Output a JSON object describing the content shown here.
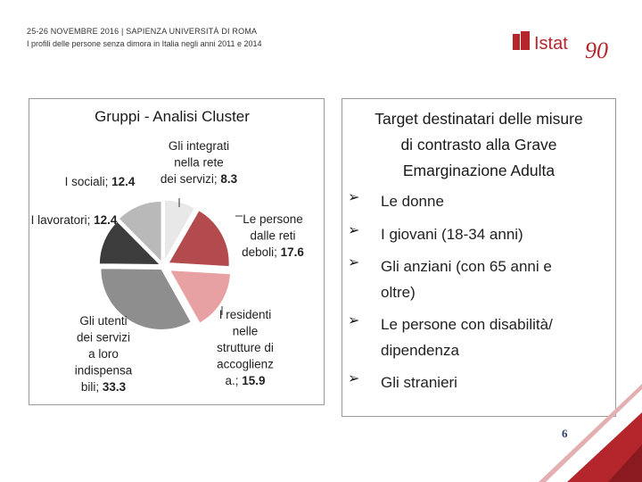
{
  "header": {
    "line1": "25-26 NOVEMBRE 2016 | SAPIENZA UNIVERSITÀ DI ROMA",
    "line2": "I profili delle persone senza dimora in Italia negli anni 2011 e 2014"
  },
  "logo": {
    "text": "Istat",
    "number": "90"
  },
  "chart_data": {
    "type": "pie",
    "title": "Gruppi - Analisi Cluster",
    "slices": [
      {
        "label_lines": [
          "Gli integrati",
          "nella rete",
          "dei servizi;"
        ],
        "value": 8.3,
        "value_text": "8.3",
        "color": "#e8e8e8"
      },
      {
        "label_lines": [
          "Le persone",
          "dalle reti",
          "deboli;"
        ],
        "value": 17.6,
        "value_text": "17.6",
        "color": "#b34a4e"
      },
      {
        "label_lines": [
          "I residenti",
          "nelle",
          "strutture di",
          "accoglienz",
          "a.;"
        ],
        "value": 15.9,
        "value_text": "15.9",
        "color": "#e8a1a3"
      },
      {
        "label_lines": [
          "Gli utenti",
          "dei servizi",
          "a loro",
          "indispensa",
          "bili;"
        ],
        "value": 33.3,
        "value_text": "33.3",
        "color": "#8e8e8e"
      },
      {
        "label_lines": [
          "I lavoratori;"
        ],
        "value": 12.4,
        "value_text": "12.4",
        "color": "#3c3c3c"
      },
      {
        "label_lines": [
          "I sociali;"
        ],
        "value": 12.4,
        "value_text": "12.4",
        "color": "#b9b9b9"
      }
    ]
  },
  "target": {
    "title_lines": [
      "Target destinatari delle misure",
      "di contrasto alla Grave",
      "Emarginazione Adulta"
    ],
    "bullet_symbol": "➢",
    "items": [
      {
        "lines": [
          "Le donne"
        ]
      },
      {
        "lines": [
          "I giovani (18-34 anni)"
        ]
      },
      {
        "lines": [
          "Gli anziani (con 65 anni e",
          "oltre)"
        ]
      },
      {
        "lines": [
          "Le persone con disabilità/",
          "dipendenza"
        ]
      },
      {
        "lines": [
          "Gli stranieri"
        ]
      }
    ]
  },
  "page_number": "6",
  "colors": {
    "brand_red": "#b4262c",
    "page_number": "#2e3d6b"
  }
}
